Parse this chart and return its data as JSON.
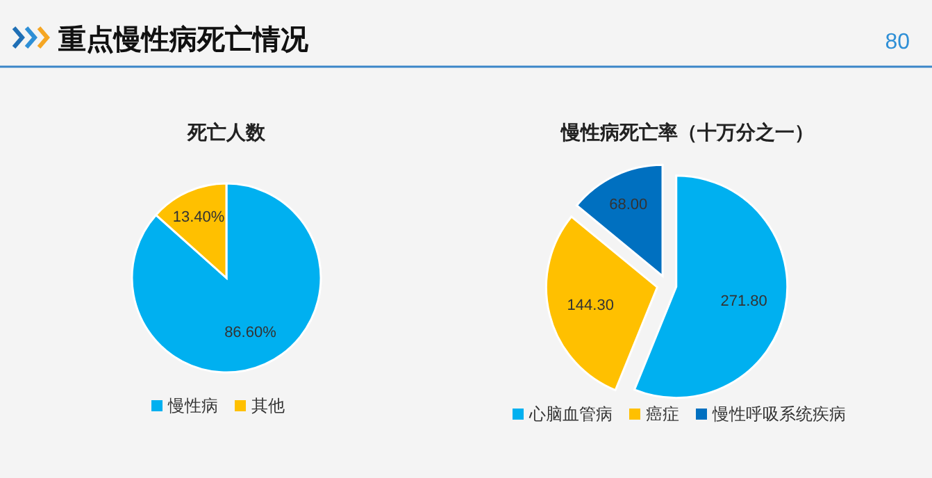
{
  "chart_data": [
    {
      "type": "pie",
      "title": "死亡人数",
      "annotations": [
        "重点慢性病死亡情况",
        "80"
      ],
      "categories": [
        "慢性病",
        "其他"
      ],
      "values": [
        86.6,
        13.4
      ],
      "value_labels": [
        "86.60%",
        "13.40%"
      ],
      "colors": [
        "#00b0f0",
        "#ffc000"
      ],
      "legend": "bottom"
    },
    {
      "type": "pie",
      "title": "慢性病死亡率（十万分之一）",
      "categories": [
        "心脑血管病",
        "癌症",
        "慢性呼吸系统疾病"
      ],
      "values": [
        271.8,
        144.3,
        68.0
      ],
      "value_labels": [
        "271.80",
        "144.30",
        "68.00"
      ],
      "colors": [
        "#00b0f0",
        "#ffc000",
        "#0070c0"
      ],
      "legend": "bottom"
    }
  ]
}
